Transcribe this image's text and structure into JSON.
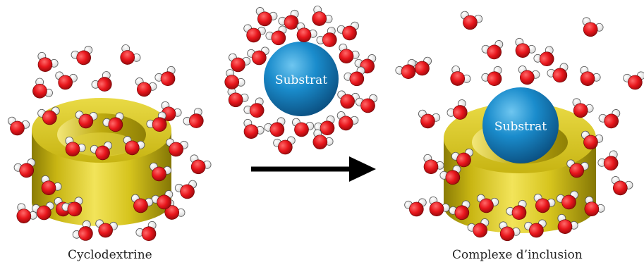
{
  "labels": {
    "substrate_free": "Substrat",
    "substrate_complex": "Substrat",
    "cyclodextrin": "Cyclodextrine",
    "inclusion_complex": "Complexe d’inclusion"
  },
  "colors": {
    "oxygen": "#e8161c",
    "hydrogen": "#ffffff",
    "cyclodextrin": "#d4c21a",
    "substrate": "#1583c2",
    "arrow": "#000000"
  },
  "icons": {
    "reaction_arrow": "arrow-right-icon"
  }
}
